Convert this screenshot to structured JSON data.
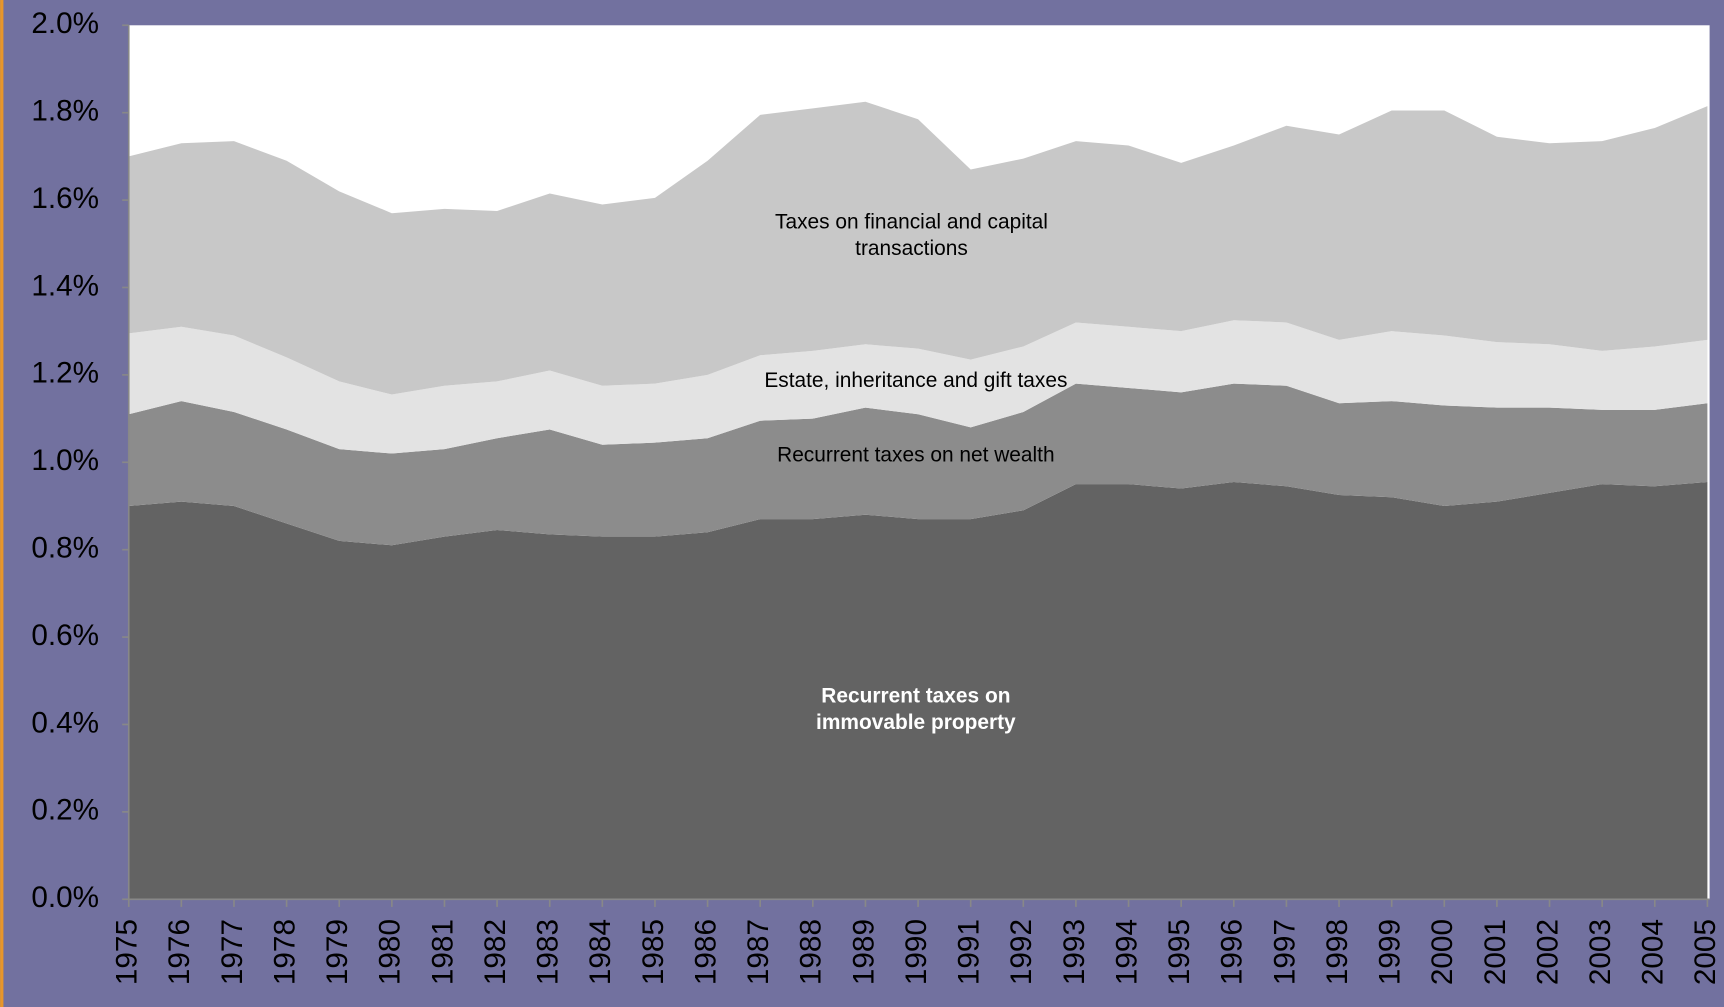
{
  "chart_data": {
    "type": "stacked-area",
    "x": [
      1975,
      1976,
      1977,
      1978,
      1979,
      1980,
      1981,
      1982,
      1983,
      1984,
      1985,
      1986,
      1987,
      1988,
      1989,
      1990,
      1991,
      1992,
      1993,
      1994,
      1995,
      1996,
      1997,
      1998,
      1999,
      2000,
      2001,
      2002,
      2003,
      2004,
      2005
    ],
    "xlim": [
      1975,
      2005
    ],
    "xticks": [
      1975,
      1976,
      1977,
      1978,
      1979,
      1980,
      1981,
      1982,
      1983,
      1984,
      1985,
      1986,
      1987,
      1988,
      1989,
      1990,
      1991,
      1992,
      1993,
      1994,
      1995,
      1996,
      1997,
      1998,
      1999,
      2000,
      2001,
      2002,
      2003,
      2004,
      2005
    ],
    "ylim": [
      0,
      2.0
    ],
    "yticks": [
      {
        "value": 0,
        "label": "0.0%"
      },
      {
        "value": 0.2,
        "label": "0.2%"
      },
      {
        "value": 0.4,
        "label": "0.4%"
      },
      {
        "value": 0.6,
        "label": "0.6%"
      },
      {
        "value": 0.8,
        "label": "0.8%"
      },
      {
        "value": 1.0,
        "label": "1.0%"
      },
      {
        "value": 1.2,
        "label": "1.2%"
      },
      {
        "value": 1.4,
        "label": "1.4%"
      },
      {
        "value": 1.6,
        "label": "1.6%"
      },
      {
        "value": 1.8,
        "label": "1.8%"
      },
      {
        "value": 2.0,
        "label": "2.0%"
      }
    ],
    "series": [
      {
        "name": "Recurrent taxes on immovable property",
        "color": "#636363",
        "values": [
          0.9,
          0.91,
          0.9,
          0.86,
          0.82,
          0.81,
          0.83,
          0.845,
          0.835,
          0.83,
          0.83,
          0.84,
          0.87,
          0.87,
          0.88,
          0.87,
          0.87,
          0.89,
          0.95,
          0.95,
          0.94,
          0.955,
          0.945,
          0.925,
          0.92,
          0.9,
          0.91,
          0.93,
          0.95,
          0.945,
          0.955
        ]
      },
      {
        "name": "Recurrent taxes on net wealth",
        "color": "#8c8c8c",
        "values": [
          0.21,
          0.23,
          0.215,
          0.215,
          0.21,
          0.21,
          0.2,
          0.21,
          0.24,
          0.21,
          0.215,
          0.215,
          0.225,
          0.23,
          0.245,
          0.24,
          0.21,
          0.225,
          0.23,
          0.22,
          0.22,
          0.225,
          0.23,
          0.21,
          0.22,
          0.23,
          0.215,
          0.195,
          0.17,
          0.175,
          0.18
        ]
      },
      {
        "name": "Estate, inheritance and gift taxes",
        "color": "#e3e3e3",
        "values": [
          0.185,
          0.17,
          0.175,
          0.165,
          0.155,
          0.135,
          0.145,
          0.13,
          0.135,
          0.135,
          0.135,
          0.145,
          0.15,
          0.155,
          0.145,
          0.15,
          0.155,
          0.15,
          0.14,
          0.14,
          0.14,
          0.145,
          0.145,
          0.145,
          0.16,
          0.16,
          0.15,
          0.145,
          0.135,
          0.145,
          0.145
        ]
      },
      {
        "name": "Taxes on financial and capital transactions",
        "color": "#c8c8c8",
        "values": [
          0.405,
          0.42,
          0.445,
          0.45,
          0.435,
          0.415,
          0.405,
          0.39,
          0.405,
          0.415,
          0.425,
          0.49,
          0.55,
          0.555,
          0.555,
          0.525,
          0.435,
          0.43,
          0.415,
          0.415,
          0.385,
          0.4,
          0.45,
          0.47,
          0.505,
          0.515,
          0.47,
          0.46,
          0.48,
          0.5,
          0.535
        ]
      }
    ]
  }
}
